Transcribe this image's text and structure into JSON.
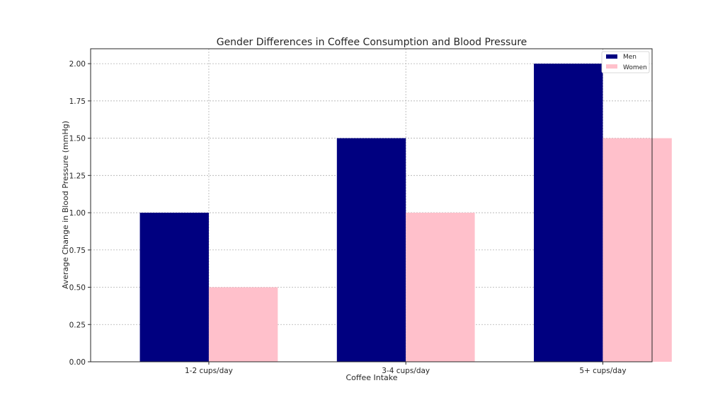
{
  "chart_data": {
    "type": "bar",
    "title": "Gender Differences in Coffee Consumption and Blood Pressure",
    "xlabel": "Coffee Intake",
    "ylabel": "Average Change in Blood Pressure (mmHg)",
    "categories": [
      "1-2 cups/day",
      "3-4 cups/day",
      "5+ cups/day"
    ],
    "series": [
      {
        "name": "Men",
        "values": [
          1.0,
          1.5,
          2.0
        ],
        "color": "#000080"
      },
      {
        "name": "Women",
        "values": [
          0.5,
          1.0,
          1.5
        ],
        "color": "#FFC0CB"
      }
    ],
    "ylim": [
      0,
      2.1
    ],
    "yticks": [
      "0.00",
      "0.25",
      "0.50",
      "0.75",
      "1.00",
      "1.25",
      "1.50",
      "1.75",
      "2.00"
    ],
    "ytick_values": [
      0,
      0.25,
      0.5,
      0.75,
      1.0,
      1.25,
      1.5,
      1.75,
      2.0
    ],
    "grid": true,
    "legend_position": "top-right"
  }
}
